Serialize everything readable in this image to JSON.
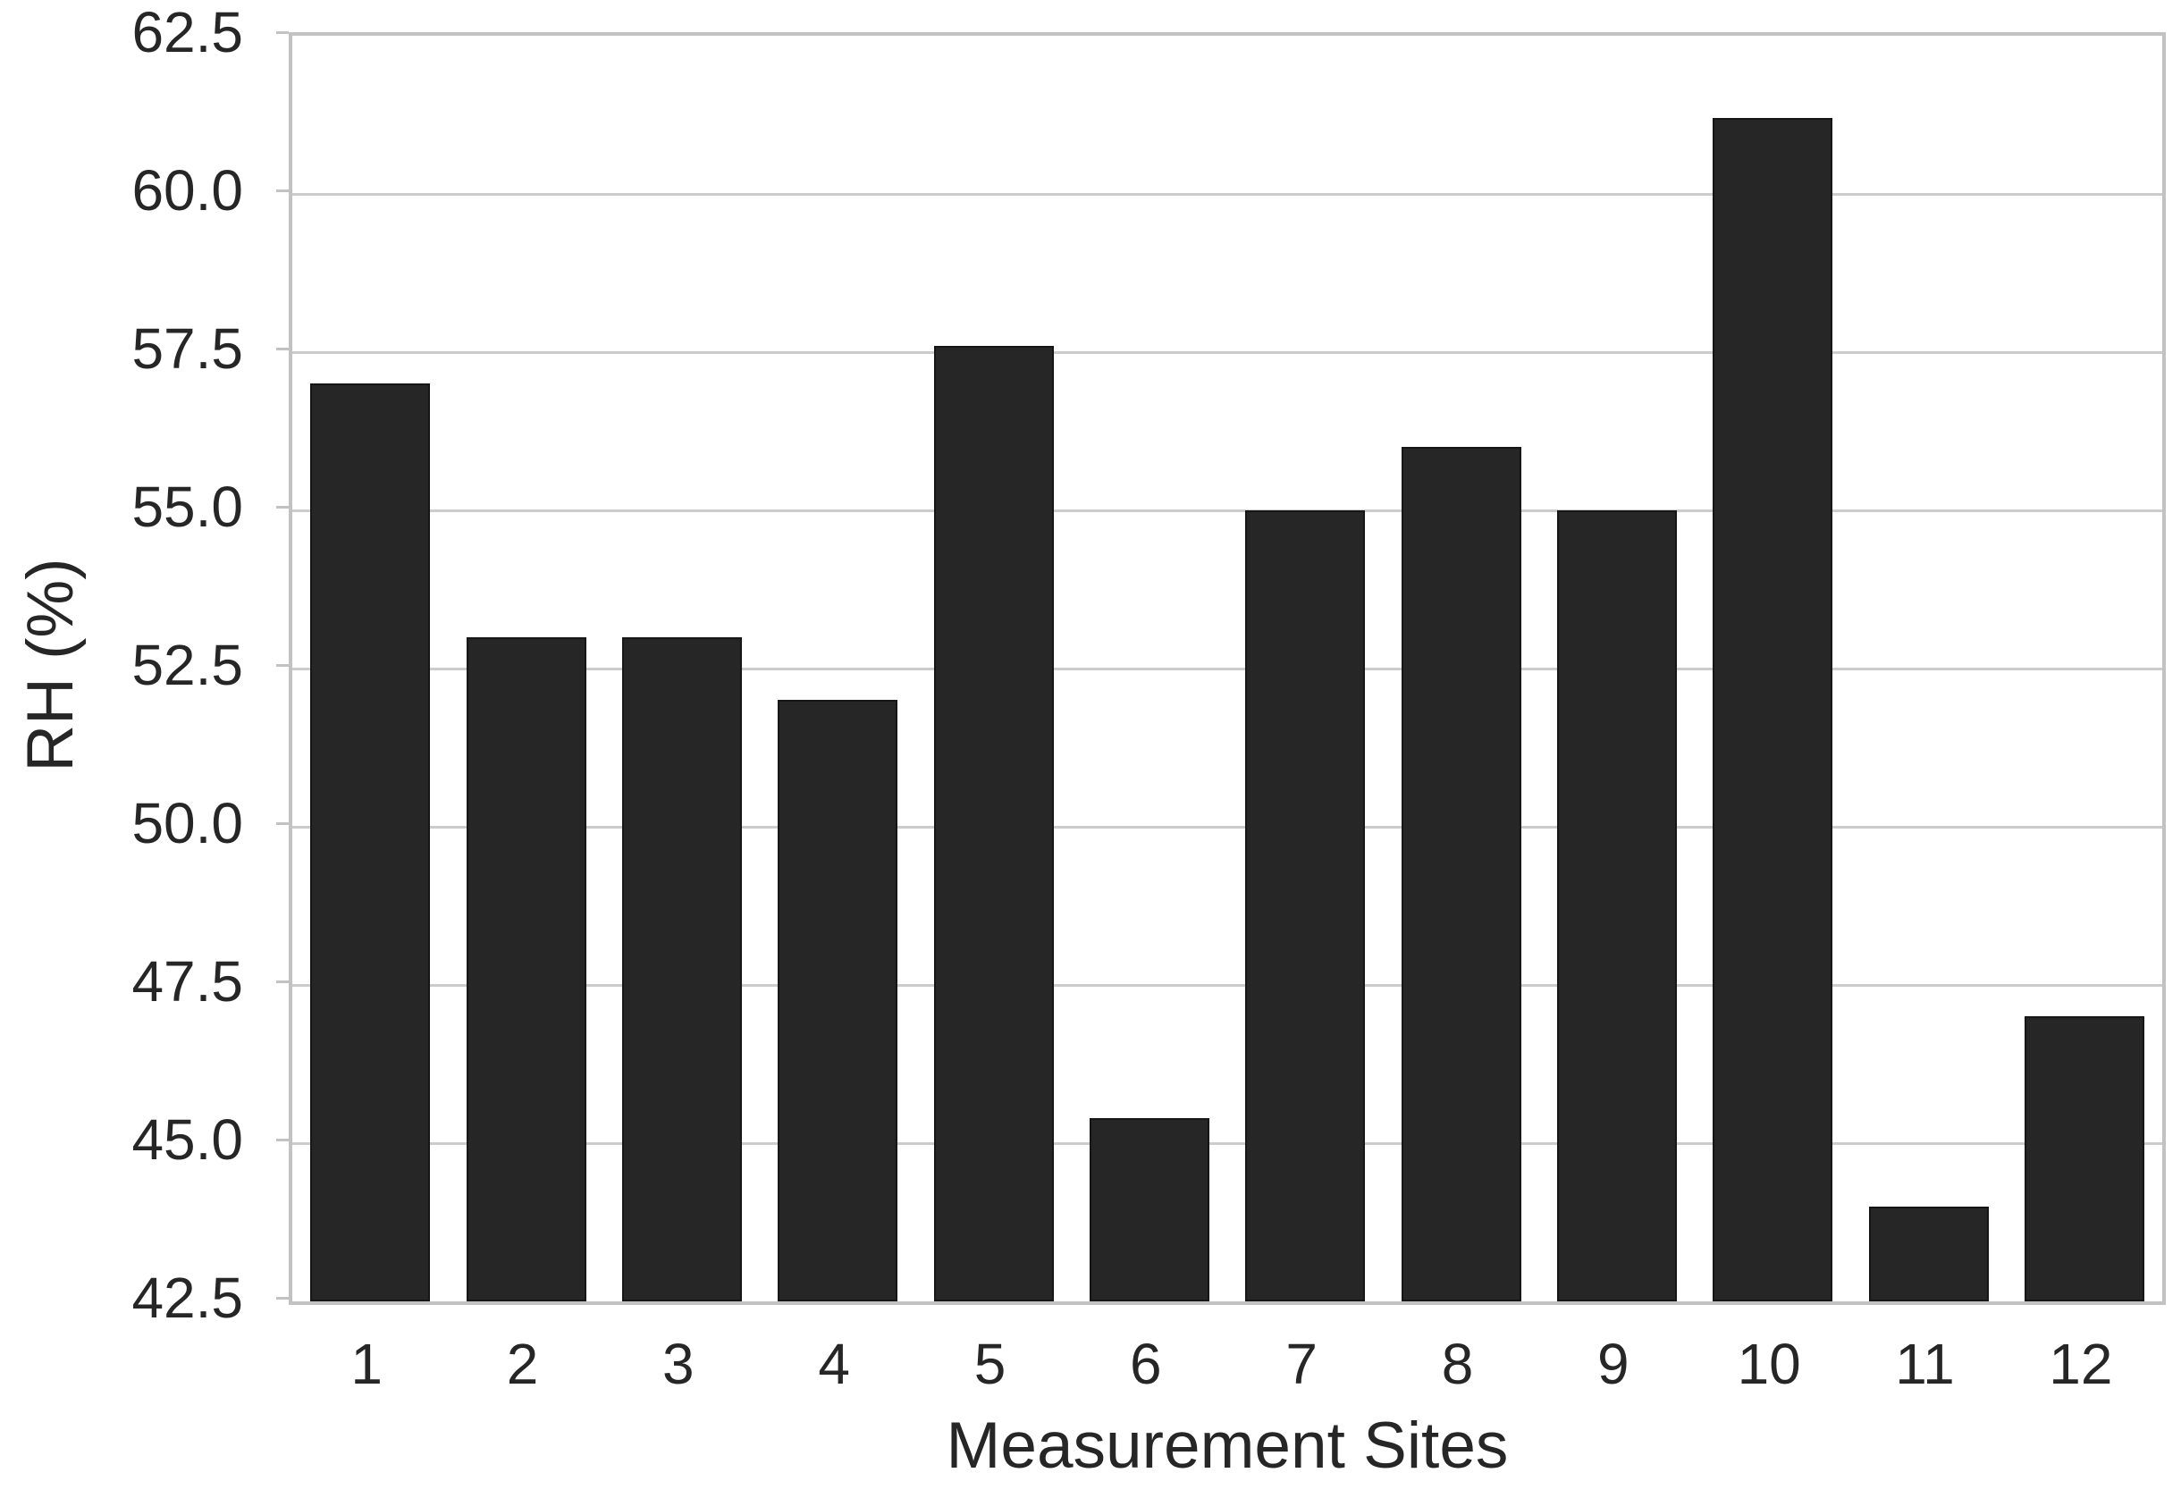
{
  "chart_data": {
    "type": "bar",
    "title": "",
    "categories": [
      "1",
      "2",
      "3",
      "4",
      "5",
      "6",
      "7",
      "8",
      "9",
      "10",
      "11",
      "12"
    ],
    "values": [
      57.0,
      53.0,
      53.0,
      52.0,
      57.6,
      45.4,
      55.0,
      56.0,
      55.0,
      61.2,
      44.0,
      47.0
    ],
    "xlabel": "Measurement Sites",
    "ylabel": "RH (%)",
    "ylim": [
      42.5,
      62.5
    ],
    "ytick_step": 2.5,
    "ytick_labels": [
      "62.5",
      "60.0",
      "57.5",
      "55.0",
      "52.5",
      "50.0",
      "47.5",
      "45.0",
      "42.5"
    ],
    "grid": "horizontal",
    "legend_position": "none",
    "colors": {
      "bar_fill": "#262626",
      "bar_edge": "#161616",
      "gridline": "#cccccc",
      "spine": "#c2c2c2",
      "text": "#262626",
      "background": "#ffffff"
    }
  }
}
